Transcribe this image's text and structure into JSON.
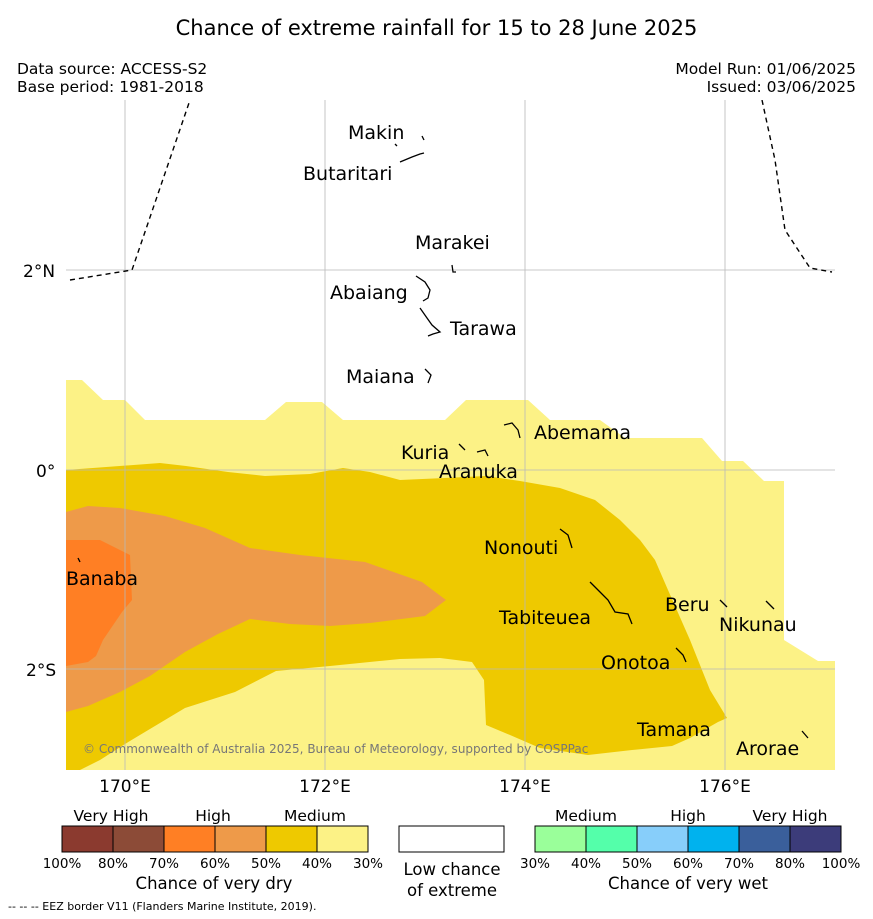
{
  "title": "Chance of extreme rainfall for 15 to 28 June 2025",
  "meta": {
    "data_source": "Data source: ACCESS-S2",
    "base_period": "Base period: 1981-2018",
    "model_run": "Model Run: 01/06/2025",
    "issued": "Issued: 03/06/2025"
  },
  "map": {
    "lat_labels": [
      "2°N",
      "0°",
      "2°S"
    ],
    "lon_labels": [
      "170°E",
      "172°E",
      "174°E",
      "176°E"
    ],
    "islands": [
      {
        "name": "Makin"
      },
      {
        "name": "Butaritari"
      },
      {
        "name": "Marakei"
      },
      {
        "name": "Abaiang"
      },
      {
        "name": "Tarawa"
      },
      {
        "name": "Maiana"
      },
      {
        "name": "Abemama"
      },
      {
        "name": "Kuria"
      },
      {
        "name": "Aranuka"
      },
      {
        "name": "Nonouti"
      },
      {
        "name": "Banaba"
      },
      {
        "name": "Tabiteuea"
      },
      {
        "name": "Beru"
      },
      {
        "name": "Nikunau"
      },
      {
        "name": "Onotoa"
      },
      {
        "name": "Tamana"
      },
      {
        "name": "Arorae"
      }
    ],
    "copyright": "© Commonwealth of Australia 2025, Bureau of Meteorology, supported by COSPPac"
  },
  "legend": {
    "dry": {
      "categories": [
        "Very High",
        "High",
        "Medium"
      ],
      "percents": [
        "100%",
        "80%",
        "70%",
        "60%",
        "50%",
        "40%",
        "30%"
      ],
      "colors": [
        "#8b3a2f",
        "#8c4b37",
        "#ff7f24",
        "#ee9a49",
        "#eec900",
        "#fcf286"
      ],
      "caption": "Chance of very dry"
    },
    "low": {
      "caption_line1": "Low chance",
      "caption_line2": "of extreme",
      "color": "#ffffff"
    },
    "wet": {
      "categories": [
        "Medium",
        "High",
        "Very High"
      ],
      "percents": [
        "30%",
        "40%",
        "50%",
        "60%",
        "70%",
        "80%",
        "100%"
      ],
      "colors": [
        "#9aff9a",
        "#54ffaa",
        "#87cefa",
        "#00b2ee",
        "#3a5f9b",
        "#3c3c7a"
      ],
      "caption": "Chance of very wet"
    }
  },
  "eez_note": "--  --  -- EEZ border V11 (Flanders Marine Institute, 2019)."
}
